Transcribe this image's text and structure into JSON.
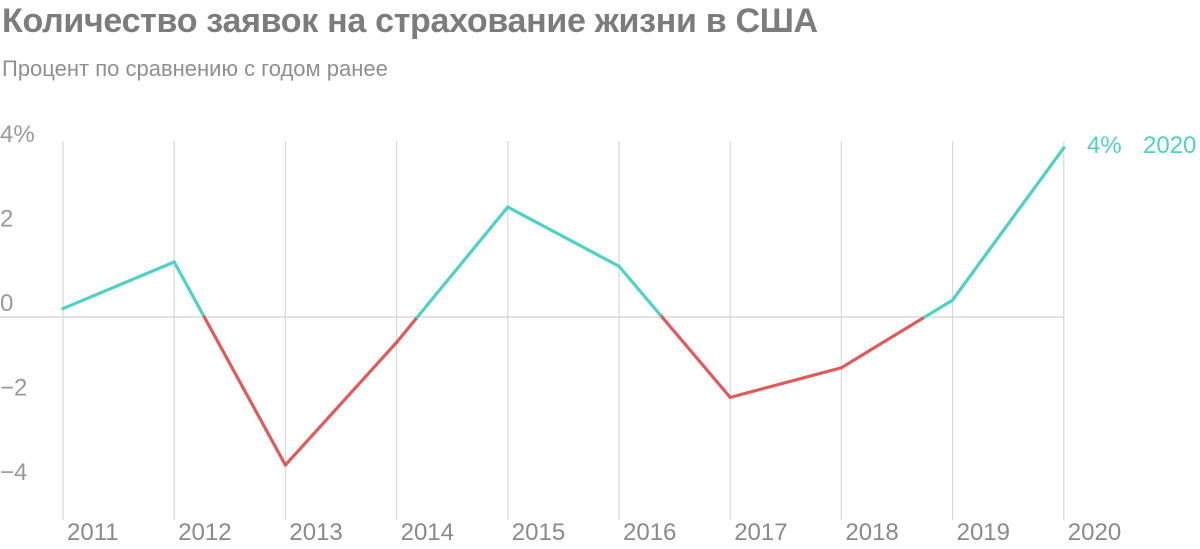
{
  "title": "Количество заявок на страхование жизни в США",
  "subtitle": "Процент по сравнению с годом ранее",
  "colors": {
    "positive": "#4fd1c5",
    "negative": "#e05a5a",
    "grid": "#d9d9d9",
    "axis": "#bdbdbd",
    "text": "#9a9a9a"
  },
  "chart_data": {
    "type": "line",
    "title": "Количество заявок на страхование жизни в США",
    "subtitle": "Процент по сравнению с годом ранее",
    "x": [
      "2011",
      "2012",
      "2013",
      "2014",
      "2015",
      "2016",
      "2017",
      "2018",
      "2019",
      "2020"
    ],
    "y": [
      0.2,
      1.3,
      -3.5,
      -0.6,
      2.6,
      1.2,
      -1.9,
      -1.2,
      0.4,
      4.0
    ],
    "ylim": [
      -4.4,
      4.4
    ],
    "yticks": [
      "4%",
      "2",
      "0",
      "−2",
      "−4"
    ],
    "ytick_values": [
      4,
      2,
      0,
      -2,
      -4
    ],
    "end_label": {
      "value": "4%",
      "year": "2020"
    },
    "grid": "vertical lines at each year, baseline at 0"
  }
}
